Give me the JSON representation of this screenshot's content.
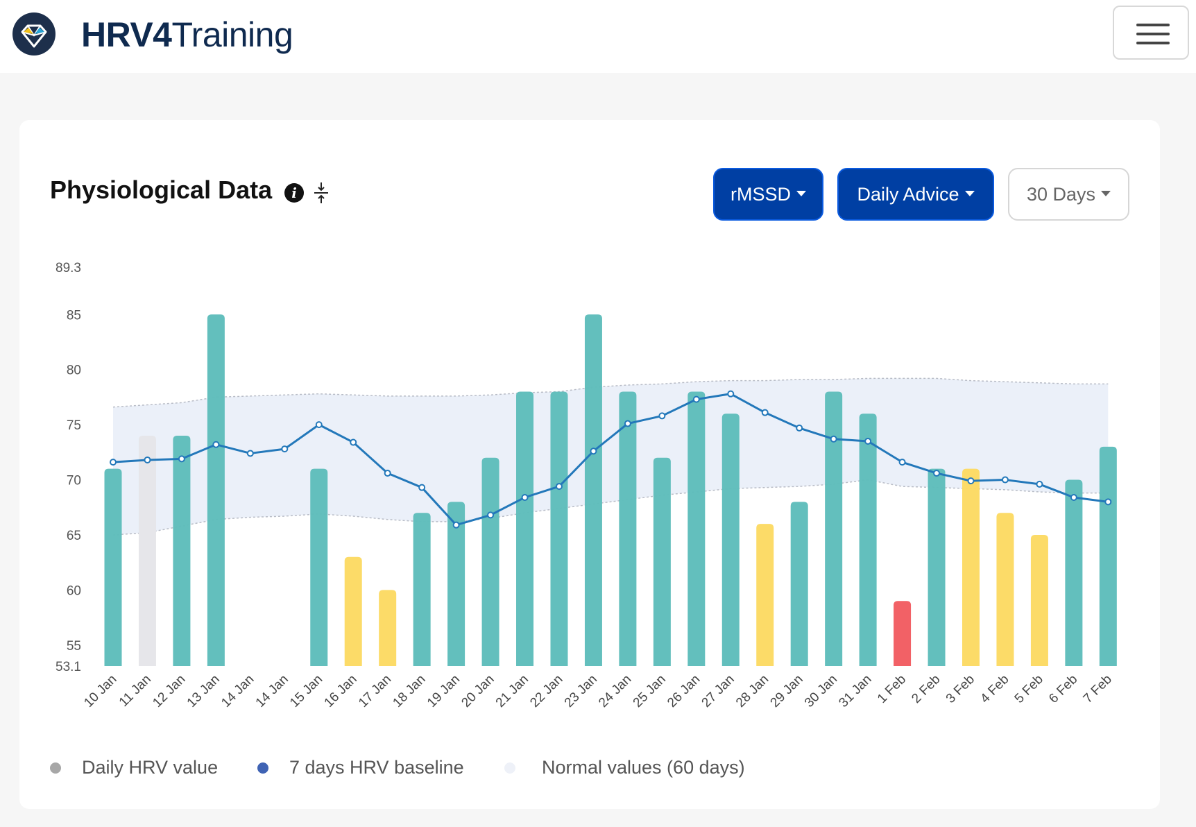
{
  "brand": {
    "bold": "HRV",
    "mid": "4",
    "rest": "Training"
  },
  "card": {
    "title": "Physiological Data",
    "metric_button": "rMSSD",
    "advice_button": "Daily Advice",
    "range_button": "30 Days"
  },
  "icons": {
    "logo": "hrv4training-logo",
    "info": "info-icon",
    "collapse": "collapse-icon",
    "menu": "hamburger-icon"
  },
  "colors": {
    "good": "#5ebdbb",
    "warning": "#fcda63",
    "alert": "#f25c61",
    "missing": "#e6e6ea",
    "baseline": "#2378ba",
    "band": "#e9eef8"
  },
  "chart_data": {
    "type": "bar",
    "ylim": [
      53.1,
      89.3
    ],
    "yticks": [
      "89.3",
      "85",
      "80",
      "75",
      "70",
      "65",
      "60",
      "55",
      "53.1"
    ],
    "categories": [
      "10 Jan",
      "11 Jan",
      "12 Jan",
      "13 Jan",
      "14 Jan",
      "14 Jan",
      "15 Jan",
      "16 Jan",
      "17 Jan",
      "18 Jan",
      "19 Jan",
      "20 Jan",
      "21 Jan",
      "22 Jan",
      "23 Jan",
      "24 Jan",
      "25 Jan",
      "26 Jan",
      "27 Jan",
      "28 Jan",
      "29 Jan",
      "30 Jan",
      "31 Jan",
      "1 Feb",
      "2 Feb",
      "3 Feb",
      "4 Feb",
      "5 Feb",
      "6 Feb",
      "7 Feb"
    ],
    "series": [
      {
        "name": "Daily HRV value",
        "type": "bar",
        "values": [
          71,
          74,
          74,
          85,
          null,
          null,
          71,
          63,
          60,
          67,
          68,
          72,
          78,
          78,
          85,
          78,
          72,
          78,
          76,
          66,
          68,
          78,
          76,
          59,
          71,
          71,
          67,
          65,
          70,
          73
        ],
        "status": [
          "good",
          "missing",
          "good",
          "good",
          "none",
          "none",
          "good",
          "warning",
          "warning",
          "good",
          "good",
          "good",
          "good",
          "good",
          "good",
          "good",
          "good",
          "good",
          "good",
          "warning",
          "good",
          "good",
          "good",
          "alert",
          "good",
          "warning",
          "warning",
          "warning",
          "good",
          "good"
        ]
      },
      {
        "name": "7 days HRV baseline",
        "type": "line",
        "values": [
          71.6,
          71.8,
          71.9,
          73.2,
          72.4,
          72.8,
          75,
          73.4,
          70.6,
          69.3,
          65.9,
          66.8,
          68.4,
          69.4,
          72.6,
          75.1,
          75.8,
          77.3,
          77.8,
          76.1,
          74.7,
          73.7,
          73.5,
          71.6,
          70.6,
          69.9,
          70.0,
          69.6,
          68.4,
          68.0
        ]
      },
      {
        "name": "Normal values (60 days)",
        "type": "area",
        "upper": [
          76.6,
          76.8,
          77,
          77.5,
          77.6,
          77.7,
          77.8,
          77.7,
          77.6,
          77.6,
          77.6,
          77.7,
          77.9,
          78,
          78.4,
          78.6,
          78.7,
          78.9,
          79,
          79,
          79.1,
          79.1,
          79.2,
          79.2,
          79.2,
          79,
          78.9,
          78.8,
          78.7,
          78.7
        ],
        "lower": [
          65,
          65.2,
          65.8,
          66.4,
          66.6,
          66.7,
          66.9,
          66.7,
          66.4,
          66.2,
          66.2,
          66.5,
          67,
          67.4,
          67.8,
          68.2,
          68.6,
          68.9,
          69.2,
          69.3,
          69.4,
          69.6,
          70,
          69.4,
          69.3,
          69.2,
          69.1,
          68.9,
          68.8,
          68.8
        ]
      }
    ],
    "legend": [
      "Daily HRV value",
      "7 days HRV baseline",
      "Normal values (60 days)"
    ],
    "legend_colors": [
      "#a7a7a7",
      "#3f63b4",
      "#eef1f8"
    ],
    "legend_position": "bottom-left"
  }
}
